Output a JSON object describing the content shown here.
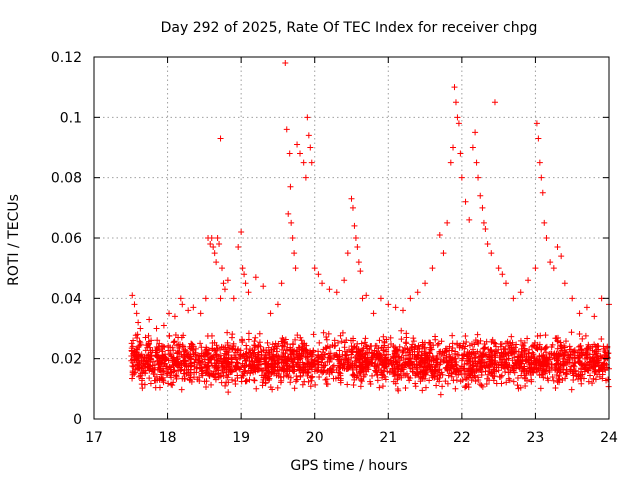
{
  "chart_data": {
    "type": "scatter",
    "title": "Day 292 of 2025, Rate Of TEC Index for receiver chpg",
    "xlabel": "GPS time / hours",
    "ylabel": "ROTI / TECUs",
    "xlim": [
      17,
      24
    ],
    "ylim": [
      0,
      0.12
    ],
    "grid": true,
    "marker": "plus",
    "color": "#ff0000",
    "x_ticks": [
      "17",
      "18",
      "19",
      "20",
      "21",
      "22",
      "23",
      "24"
    ],
    "y_ticks": [
      "0",
      "0.02",
      "0.04",
      "0.06",
      "0.08",
      "0.1",
      "0.12"
    ],
    "background_band": {
      "x_start": 17.5,
      "x_end": 24.0,
      "y_low": 0.008,
      "y_high": 0.03,
      "note": "dense cloud of points between roughly 0.008 and 0.03 TECU across the whole observation window"
    },
    "series": [
      {
        "name": "ROTI",
        "x": [
          17.52,
          17.55,
          17.58,
          17.6,
          17.63,
          17.7,
          17.75,
          17.85,
          17.95,
          18.02,
          18.1,
          18.18,
          18.2,
          18.28,
          18.35,
          18.45,
          18.52,
          18.55,
          18.58,
          18.6,
          18.62,
          18.64,
          18.66,
          18.68,
          18.7,
          18.72,
          18.74,
          18.76,
          18.72,
          18.78,
          18.82,
          18.9,
          18.96,
          19.0,
          19.02,
          19.04,
          19.06,
          19.1,
          19.2,
          19.3,
          19.4,
          19.5,
          19.55,
          19.6,
          19.62,
          19.64,
          19.66,
          19.67,
          19.68,
          19.7,
          19.72,
          19.74,
          19.76,
          19.8,
          19.85,
          19.88,
          19.9,
          19.92,
          19.94,
          19.96,
          20.0,
          20.05,
          20.1,
          20.2,
          20.3,
          20.4,
          20.45,
          20.5,
          20.52,
          20.54,
          20.56,
          20.58,
          20.6,
          20.62,
          20.65,
          20.7,
          20.8,
          20.9,
          21.0,
          21.1,
          21.2,
          21.3,
          21.4,
          21.5,
          21.6,
          21.7,
          21.75,
          21.8,
          21.85,
          21.88,
          21.9,
          21.92,
          21.94,
          21.96,
          21.98,
          22.0,
          22.05,
          22.1,
          22.15,
          22.18,
          22.2,
          22.22,
          22.25,
          22.28,
          22.3,
          22.32,
          22.35,
          22.4,
          22.45,
          22.5,
          22.55,
          22.6,
          22.7,
          22.8,
          22.9,
          23.0,
          23.02,
          23.04,
          23.06,
          23.08,
          23.1,
          23.12,
          23.15,
          23.2,
          23.25,
          23.3,
          23.35,
          23.4,
          23.5,
          23.6,
          23.7,
          23.8,
          23.9,
          24.0
        ],
        "y": [
          0.041,
          0.038,
          0.035,
          0.032,
          0.03,
          0.027,
          0.033,
          0.03,
          0.031,
          0.035,
          0.034,
          0.04,
          0.038,
          0.036,
          0.037,
          0.035,
          0.04,
          0.06,
          0.058,
          0.06,
          0.057,
          0.055,
          0.052,
          0.06,
          0.058,
          0.093,
          0.05,
          0.045,
          0.04,
          0.043,
          0.046,
          0.04,
          0.057,
          0.062,
          0.05,
          0.048,
          0.045,
          0.042,
          0.047,
          0.044,
          0.035,
          0.038,
          0.045,
          0.118,
          0.096,
          0.068,
          0.088,
          0.077,
          0.065,
          0.06,
          0.055,
          0.05,
          0.091,
          0.088,
          0.085,
          0.08,
          0.1,
          0.094,
          0.09,
          0.085,
          0.05,
          0.048,
          0.045,
          0.043,
          0.042,
          0.046,
          0.055,
          0.073,
          0.07,
          0.064,
          0.06,
          0.057,
          0.052,
          0.049,
          0.04,
          0.041,
          0.035,
          0.04,
          0.038,
          0.037,
          0.036,
          0.04,
          0.042,
          0.045,
          0.05,
          0.061,
          0.055,
          0.065,
          0.085,
          0.09,
          0.11,
          0.105,
          0.1,
          0.098,
          0.088,
          0.08,
          0.072,
          0.066,
          0.09,
          0.095,
          0.085,
          0.08,
          0.074,
          0.07,
          0.065,
          0.063,
          0.058,
          0.055,
          0.105,
          0.05,
          0.048,
          0.045,
          0.04,
          0.042,
          0.046,
          0.05,
          0.098,
          0.093,
          0.085,
          0.08,
          0.075,
          0.065,
          0.06,
          0.052,
          0.05,
          0.057,
          0.054,
          0.045,
          0.04,
          0.035,
          0.037,
          0.034,
          0.04,
          0.038
        ]
      }
    ]
  }
}
